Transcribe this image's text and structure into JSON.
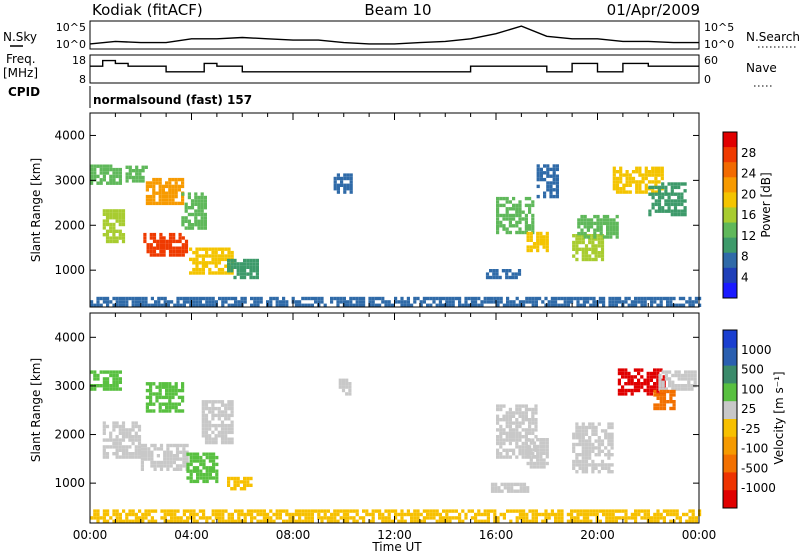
{
  "header": {
    "station": "Kodiak (fitACF)",
    "beam": "Beam 10",
    "date": "01/Apr/2009"
  },
  "left_labels": {
    "nsky": "N.Sky",
    "freq_line1": "Freq.",
    "freq_line2": "[MHz]",
    "cpid": "CPID"
  },
  "right_labels": {
    "nsearch": "N.Search",
    "nave": "Nave"
  },
  "cpid_text": "normalsound (fast) 157",
  "colors": {
    "power": [
      "#1a1aff",
      "#1f3fb8",
      "#2f6aa8",
      "#3d9a6a",
      "#5fb85a",
      "#a8cc30",
      "#f4c400",
      "#f79a00",
      "#f26a00",
      "#ef3a00",
      "#e00000"
    ],
    "velocity": [
      "#1a3fd0",
      "#2a5fb0",
      "#3a8a6a",
      "#58c040",
      "#c8c8c8",
      "#f7c000",
      "#f59a00",
      "#f27000",
      "#ee3300",
      "#e00000"
    ],
    "ground_scatter": "#c8c8c8"
  },
  "chart_data": [
    {
      "type": "line",
      "title": "N.Sky / N.Search",
      "x": [
        0,
        1,
        2,
        3,
        4,
        5,
        6,
        7,
        8,
        9,
        10,
        11,
        12,
        13,
        14,
        15,
        16,
        17,
        18,
        19,
        20,
        21,
        22,
        23,
        24
      ],
      "series": [
        {
          "name": "N.Sky",
          "values": [
            2.2,
            2.4,
            2.3,
            2.3,
            2.6,
            2.6,
            2.7,
            2.6,
            2.5,
            2.5,
            2.3,
            2.2,
            2.2,
            2.3,
            2.4,
            2.6,
            3.0,
            3.6,
            2.8,
            2.6,
            2.6,
            2.4,
            2.4,
            2.3,
            2.3
          ]
        }
      ],
      "yticks_left": [
        "10^5",
        "10^0"
      ],
      "yticks_right": [
        "10^5",
        "10^0"
      ]
    },
    {
      "type": "line",
      "title": "Freq.",
      "x": [
        0,
        0.5,
        1,
        1.5,
        2,
        3,
        4,
        4.5,
        5,
        6,
        7,
        8,
        9,
        10,
        11,
        12,
        13,
        14,
        15,
        16,
        17,
        18,
        18.5,
        19,
        20,
        21,
        22,
        23,
        24
      ],
      "series": [
        {
          "name": "Freq.",
          "values": [
            14,
            16,
            15,
            14,
            14,
            12,
            12,
            15,
            14,
            12,
            12,
            12,
            12,
            12,
            12,
            12,
            12,
            12,
            14,
            14,
            14,
            12,
            12,
            15,
            12,
            15,
            14,
            14,
            14
          ]
        }
      ],
      "yticks_left": [
        "18",
        "8"
      ],
      "yticks_right": [
        "60",
        "0"
      ]
    },
    {
      "type": "heatmap",
      "title": "Power",
      "xlabel": "",
      "ylabel": "Slant Range [km]",
      "xlim": [
        0,
        24
      ],
      "ylim": [
        180,
        4500
      ],
      "yticks": [
        1000,
        2000,
        3000,
        4000
      ],
      "colorbar": {
        "label": "Power [dB]",
        "ticks": [
          4,
          8,
          12,
          16,
          20,
          24,
          28
        ],
        "range": [
          0,
          32
        ]
      },
      "patches": [
        {
          "x": [
            0.0,
            1.2
          ],
          "y": [
            2900,
            3300
          ],
          "v": 14
        },
        {
          "x": [
            0.5,
            1.3
          ],
          "y": [
            1600,
            2300
          ],
          "v": 17
        },
        {
          "x": [
            1.4,
            2.2
          ],
          "y": [
            2950,
            3300
          ],
          "v": 12
        },
        {
          "x": [
            2.2,
            3.6
          ],
          "y": [
            2450,
            3050
          ],
          "v": 21
        },
        {
          "x": [
            2.1,
            3.8
          ],
          "y": [
            1300,
            1800
          ],
          "v": 27
        },
        {
          "x": [
            3.6,
            4.5
          ],
          "y": [
            1900,
            2700
          ],
          "v": 12
        },
        {
          "x": [
            3.9,
            5.6
          ],
          "y": [
            900,
            1500
          ],
          "v": 18
        },
        {
          "x": [
            5.4,
            6.6
          ],
          "y": [
            800,
            1200
          ],
          "v": 9
        },
        {
          "x": [
            9.6,
            10.3
          ],
          "y": [
            2700,
            3100
          ],
          "v": 7
        },
        {
          "x": [
            15.6,
            16.9
          ],
          "y": [
            800,
            980
          ],
          "v": 6
        },
        {
          "x": [
            16.0,
            17.4
          ],
          "y": [
            1800,
            2600
          ],
          "v": 12
        },
        {
          "x": [
            17.2,
            18.0
          ],
          "y": [
            1400,
            1800
          ],
          "v": 19
        },
        {
          "x": [
            17.6,
            18.4
          ],
          "y": [
            2600,
            3300
          ],
          "v": 8
        },
        {
          "x": [
            19.0,
            20.2
          ],
          "y": [
            1200,
            1800
          ],
          "v": 17
        },
        {
          "x": [
            19.2,
            20.8
          ],
          "y": [
            1700,
            2200
          ],
          "v": 14
        },
        {
          "x": [
            20.6,
            22.6
          ],
          "y": [
            2700,
            3300
          ],
          "v": 19
        },
        {
          "x": [
            22.0,
            23.4
          ],
          "y": [
            2200,
            2900
          ],
          "v": 10
        },
        {
          "x": [
            0.0,
            24.0
          ],
          "y": [
            180,
            400
          ],
          "v": 8
        }
      ]
    },
    {
      "type": "heatmap",
      "title": "Velocity",
      "xlabel": "Time UT",
      "ylabel": "Slant Range [km]",
      "xlim": [
        0,
        24
      ],
      "ylim": [
        180,
        4500
      ],
      "xticks": [
        "00:00",
        "04:00",
        "08:00",
        "12:00",
        "16:00",
        "20:00",
        "00:00"
      ],
      "yticks": [
        1000,
        2000,
        3000,
        4000
      ],
      "colorbar": {
        "label": "Velocity [m s⁻¹]",
        "ticks": [
          "1000",
          "500",
          "100",
          "25",
          "-25",
          "-100",
          "-500",
          "-1000"
        ]
      },
      "patches": [
        {
          "x": [
            0.0,
            1.2
          ],
          "y": [
            2900,
            3300
          ],
          "v": "100"
        },
        {
          "x": [
            0.5,
            2.0
          ],
          "y": [
            1500,
            2200
          ],
          "v": "gs"
        },
        {
          "x": [
            2.0,
            3.8
          ],
          "y": [
            1250,
            1800
          ],
          "v": "gs"
        },
        {
          "x": [
            2.2,
            3.6
          ],
          "y": [
            2450,
            3050
          ],
          "v": "100"
        },
        {
          "x": [
            3.8,
            5.0
          ],
          "y": [
            1000,
            1600
          ],
          "v": "100"
        },
        {
          "x": [
            4.4,
            5.6
          ],
          "y": [
            1800,
            2700
          ],
          "v": "gs"
        },
        {
          "x": [
            5.4,
            6.4
          ],
          "y": [
            850,
            1100
          ],
          "v": "-25"
        },
        {
          "x": [
            9.8,
            10.2
          ],
          "y": [
            2800,
            3100
          ],
          "v": "gs"
        },
        {
          "x": [
            15.8,
            17.2
          ],
          "y": [
            800,
            1000
          ],
          "v": "gs"
        },
        {
          "x": [
            16.0,
            17.6
          ],
          "y": [
            1500,
            2600
          ],
          "v": "gs"
        },
        {
          "x": [
            17.2,
            18.0
          ],
          "y": [
            1300,
            1900
          ],
          "v": "gs"
        },
        {
          "x": [
            19.0,
            20.6
          ],
          "y": [
            1200,
            2200
          ],
          "v": "gs"
        },
        {
          "x": [
            20.8,
            22.6
          ],
          "y": [
            2800,
            3300
          ],
          "v": "-1000"
        },
        {
          "x": [
            22.4,
            23.8
          ],
          "y": [
            2900,
            3300
          ],
          "v": "gs"
        },
        {
          "x": [
            22.2,
            23.0
          ],
          "y": [
            2500,
            2900
          ],
          "v": "-500"
        },
        {
          "x": [
            0.0,
            24.0
          ],
          "y": [
            180,
            400
          ],
          "v": "-25"
        }
      ]
    }
  ]
}
